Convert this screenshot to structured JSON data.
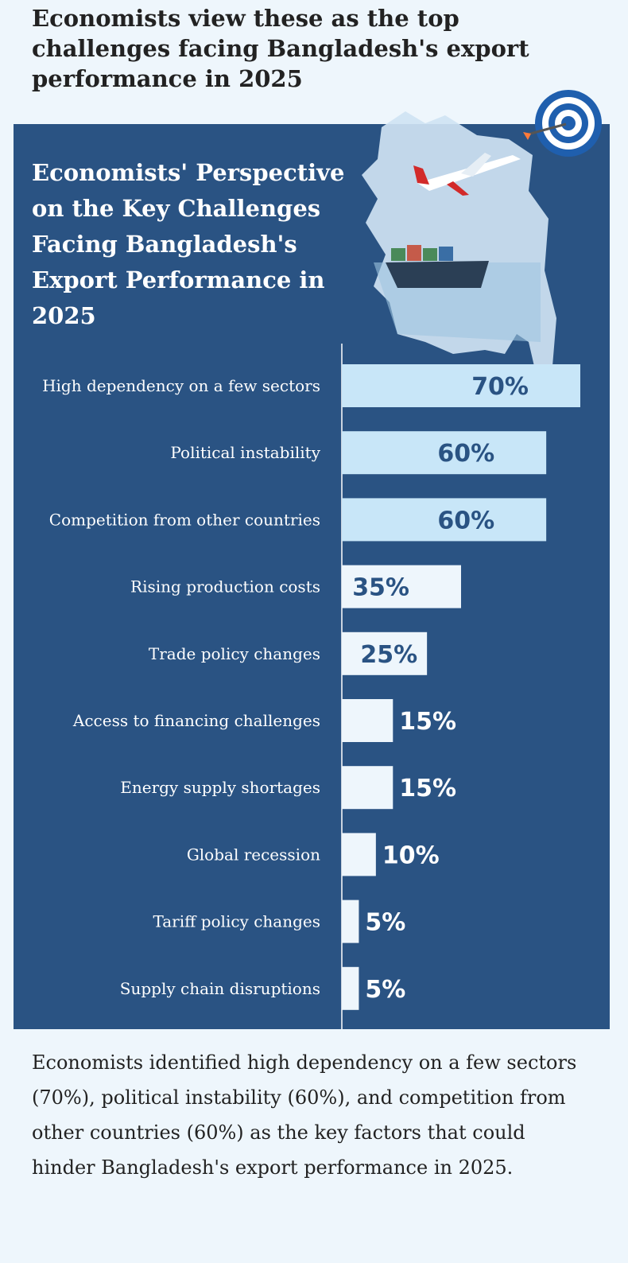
{
  "headline": "Economists view these as the top challenges facing Bangladesh's export performance in 2025",
  "panel_title": "Economists' Perspective on the Key Challenges  Facing Bangladesh's Export Performance in 2025",
  "summary": "Economists identified high dependency on a few sectors (70%), political instability (60%), and competition from other countries (60%) as the key factors that could hinder Bangladesh's export performance in 2025.",
  "colors": {
    "panel": "#2a5383",
    "bar_top": "#c8e6f8",
    "bar_other": "#eef6fc",
    "value_on_bar": "#2a5383",
    "value_off_bar": "#ffffff"
  },
  "chart_data": {
    "type": "bar",
    "orientation": "horizontal",
    "title": "Economists' Perspective on the Key Challenges  Facing Bangladesh's Export Performance in 2025",
    "categories": [
      "High dependency on a few sectors",
      "Political instability",
      "Competition from other countries",
      "Rising production costs",
      "Trade policy changes",
      "Access to financing challenges",
      "Energy supply shortages",
      "Global recession",
      "Tariff policy changes",
      "Supply chain disruptions"
    ],
    "values": [
      70,
      60,
      60,
      35,
      25,
      15,
      15,
      10,
      5,
      5
    ],
    "value_suffix": "%",
    "xlim": [
      0,
      70
    ],
    "highlight_top": 3
  }
}
